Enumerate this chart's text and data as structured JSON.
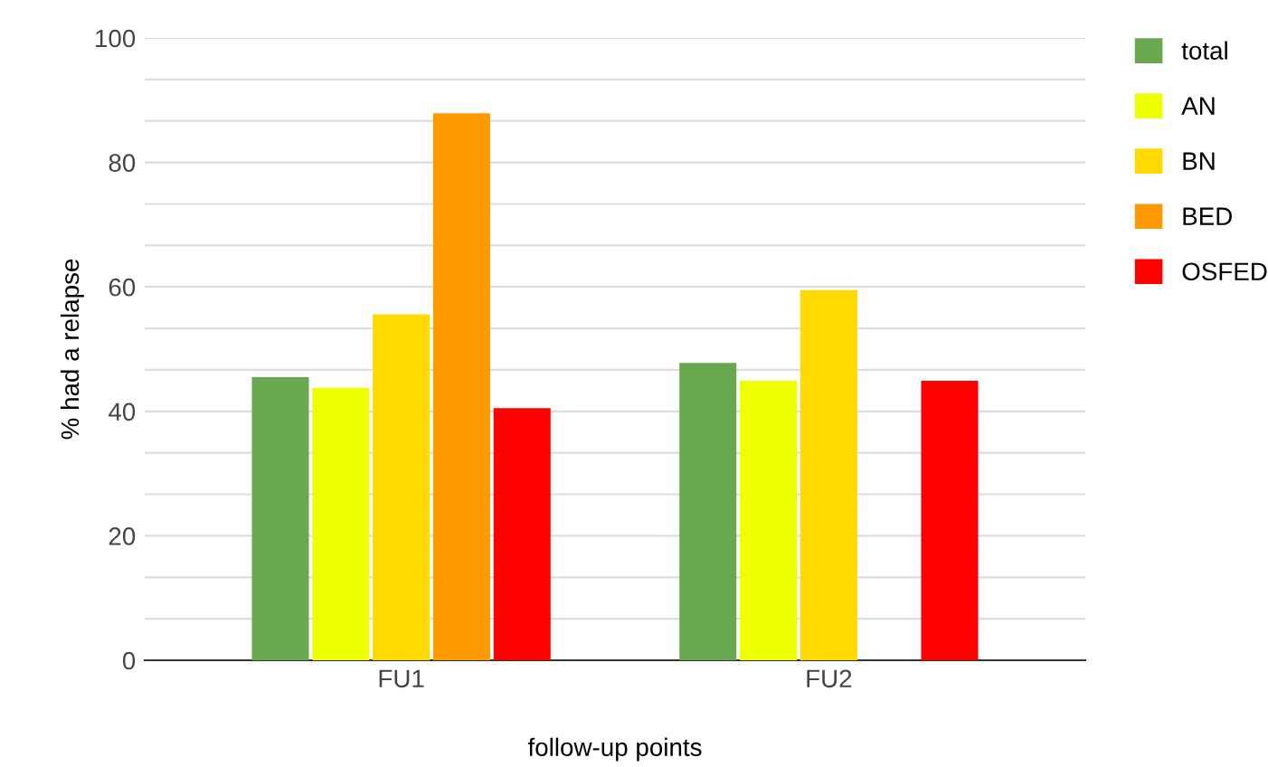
{
  "chart_data": {
    "type": "bar",
    "xlabel": "follow-up points",
    "ylabel": "% had a relapse",
    "categories": [
      "FU1",
      "FU2"
    ],
    "series": [
      {
        "name": "total",
        "color": "#6aa84f",
        "values": [
          45.5,
          47.8
        ]
      },
      {
        "name": "AN",
        "color": "#eeff00",
        "values": [
          43.8,
          44.9
        ]
      },
      {
        "name": "BN",
        "color": "#ffd900",
        "values": [
          55.6,
          59.5
        ]
      },
      {
        "name": "BED",
        "color": "#ff9900",
        "values": [
          87.9,
          null
        ]
      },
      {
        "name": "OSFED",
        "color": "#ff0000",
        "values": [
          40.5,
          44.9
        ]
      }
    ],
    "ylim": [
      0,
      100
    ],
    "yticks": [
      0,
      {
        "value": 6.67,
        "label": null
      },
      {
        "value": 13.33,
        "label": null
      },
      20,
      {
        "value": 26.67,
        "label": null
      },
      {
        "value": 33.33,
        "label": null
      },
      40,
      {
        "value": 46.67,
        "label": null
      },
      {
        "value": 53.33,
        "label": null
      },
      60,
      {
        "value": 66.67,
        "label": null
      },
      {
        "value": 73.33,
        "label": null
      },
      80,
      {
        "value": 86.67,
        "label": null
      },
      {
        "value": 93.33,
        "label": null
      },
      100
    ],
    "grid": "y",
    "legend": "right"
  }
}
